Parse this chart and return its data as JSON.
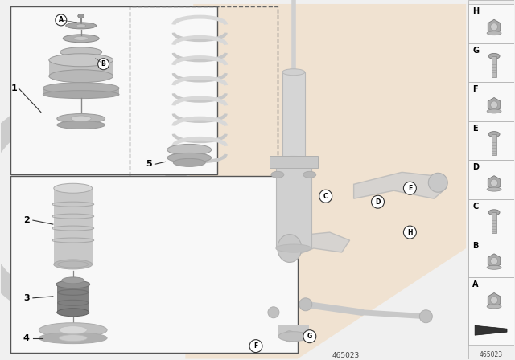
{
  "part_number": "465023",
  "bg_color": "#f0f0f0",
  "white": "#ffffff",
  "panel_bg": "#f5f5f5",
  "accent_peach": "#f0d8b8",
  "gray_dark": "#888888",
  "gray_mid": "#b8b8b8",
  "gray_light": "#d8d8d8",
  "gray_deep": "#707070",
  "line_col": "#555555",
  "right_labels": [
    "H",
    "G",
    "F",
    "E",
    "D",
    "C",
    "B",
    "A"
  ],
  "right_is_nut": [
    true,
    false,
    true,
    false,
    true,
    false,
    true,
    true
  ]
}
